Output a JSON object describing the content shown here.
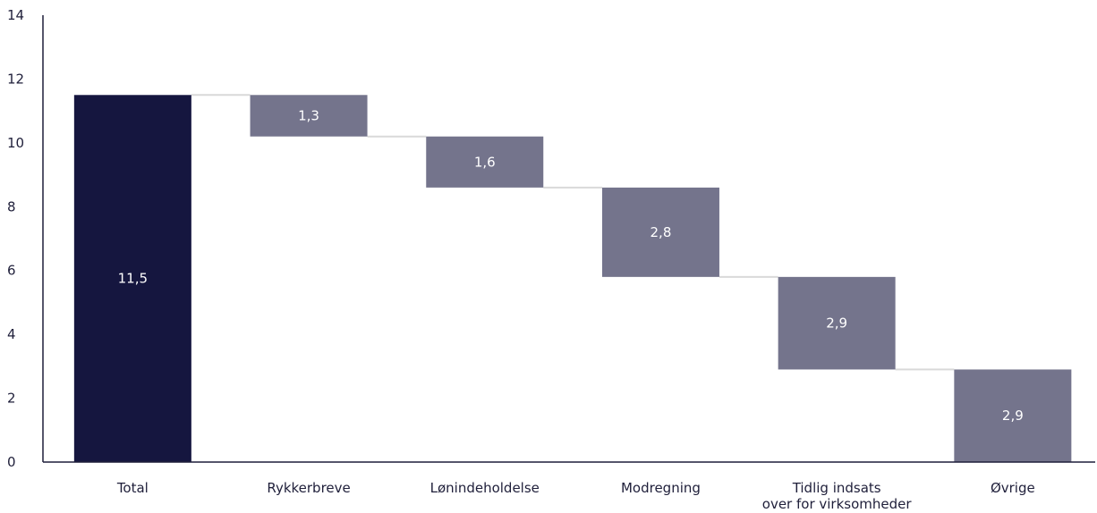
{
  "chart_data": {
    "type": "bar",
    "subtype": "waterfall",
    "title": "",
    "xlabel": "",
    "ylabel": "",
    "ylim": [
      0,
      14
    ],
    "yticks": [
      0,
      2,
      4,
      6,
      8,
      10,
      12,
      14
    ],
    "grid": false,
    "categories": [
      {
        "lines": [
          "Total"
        ]
      },
      {
        "lines": [
          "Rykkerbreve"
        ]
      },
      {
        "lines": [
          "Lønindeholdelse"
        ]
      },
      {
        "lines": [
          "Modregning"
        ]
      },
      {
        "lines": [
          "Tidlig indsats",
          "over for virksomheder"
        ]
      },
      {
        "lines": [
          "Øvrige"
        ]
      }
    ],
    "values": [
      11.5,
      1.3,
      1.6,
      2.8,
      2.9,
      2.9
    ],
    "data_labels": [
      "11,5",
      "1,3",
      "1,6",
      "2,8",
      "2,9",
      "2,9"
    ],
    "bars": [
      {
        "kind": "total",
        "base": 0,
        "top": 11.5
      },
      {
        "kind": "step",
        "base": 10.2,
        "top": 11.5
      },
      {
        "kind": "step",
        "base": 8.6,
        "top": 10.2
      },
      {
        "kind": "step",
        "base": 5.8,
        "top": 8.6
      },
      {
        "kind": "step",
        "base": 2.9,
        "top": 5.8
      },
      {
        "kind": "step",
        "base": 0,
        "top": 2.9
      }
    ],
    "colors": {
      "total": "#15163f",
      "step": "#74748c",
      "connector": "#d9d9d9",
      "axis": "#1f1f3a"
    }
  }
}
